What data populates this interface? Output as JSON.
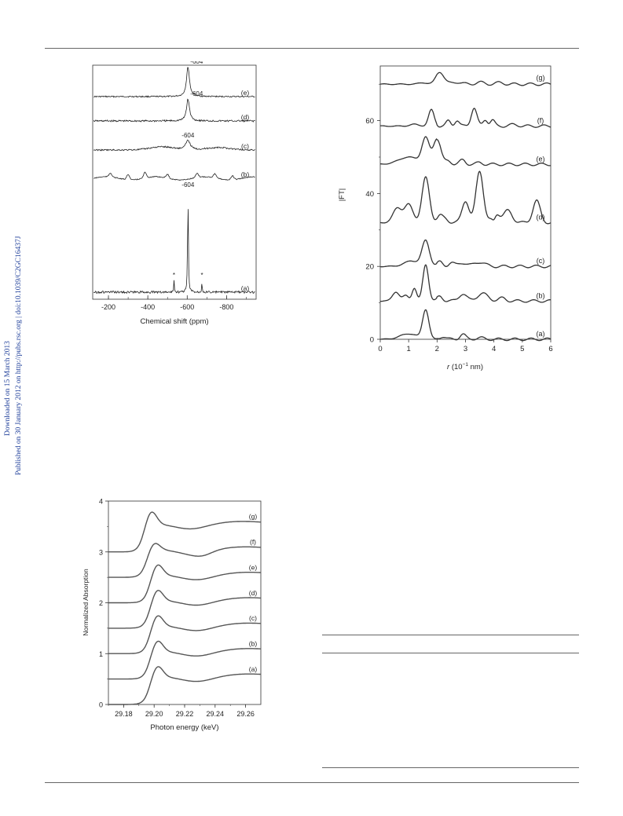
{
  "side_note": {
    "line1": "Downloaded on 15 March 2013",
    "line2": "Published on 30 January 2012 on http://pubs.rsc.org | doi:10.1039/C2GC16437J"
  },
  "figures": {
    "nmr": {
      "xlabel": "Chemical shift (ppm)",
      "xticks": [
        "-200",
        "-400",
        "-600",
        "-800"
      ],
      "traces": [
        {
          "label": "(e)",
          "peak_label": "-604"
        },
        {
          "label": "(d)",
          "peak_label": "-604"
        },
        {
          "label": "(c)",
          "peak_label": "-604"
        },
        {
          "label": "(b)",
          "peak_label": ""
        },
        {
          "label": "(a)",
          "peak_label": "-604"
        }
      ],
      "sideband_marker": "*"
    },
    "ft": {
      "ylabel": "|FT|",
      "xlabel_main": "r",
      "xlabel_unit": " (10",
      "xlabel_exp": "−1",
      "xlabel_tail": " nm)",
      "xticks": [
        "0",
        "1",
        "2",
        "3",
        "4",
        "5",
        "6"
      ],
      "yticks": [
        "0",
        "20",
        "40",
        "60"
      ],
      "traces": [
        "(g)",
        "(f)",
        "(e)",
        "(d)",
        "(c)",
        "(b)",
        "(a)"
      ]
    },
    "xanes": {
      "ylabel": "Normalized Absorption",
      "xlabel": "Photon energy (keV)",
      "xticks": [
        "29.18",
        "29.20",
        "29.22",
        "29.24",
        "29.26"
      ],
      "yticks": [
        "0",
        "1",
        "2",
        "3",
        "4"
      ],
      "traces": [
        "(g)",
        "(f)",
        "(e)",
        "(d)",
        "(c)",
        "(b)",
        "(a)"
      ]
    }
  },
  "chart_data": [
    {
      "type": "line",
      "xlabel": "Chemical shift (ppm)",
      "ylabel": "",
      "xlim": [
        -120,
        -950
      ],
      "x_reversed": true,
      "grid": false,
      "series": [
        {
          "name": "(e)",
          "peak_ppm": -604
        },
        {
          "name": "(d)",
          "peak_ppm": -604
        },
        {
          "name": "(c)",
          "peak_ppm": -604
        },
        {
          "name": "(b)",
          "peak_ppm": null
        },
        {
          "name": "(a)",
          "peak_ppm": -604,
          "sidebands_ppm": [
            -533,
            -675
          ]
        }
      ]
    },
    {
      "type": "line",
      "xlabel": "r (10−1 nm)",
      "ylabel": "|FT|",
      "xlim": [
        0,
        6
      ],
      "ylim": [
        0,
        75
      ],
      "grid": false,
      "series": [
        {
          "name": "(g)",
          "baseline": 70,
          "peaks": [
            {
              "x": 2.1,
              "y": 73.5
            }
          ]
        },
        {
          "name": "(f)",
          "baseline": 58.5,
          "peaks": [
            {
              "x": 1.8,
              "y": 63
            },
            {
              "x": 3.3,
              "y": 63.5
            }
          ]
        },
        {
          "name": "(e)",
          "baseline": 48,
          "peaks": [
            {
              "x": 1.6,
              "y": 55
            },
            {
              "x": 2.0,
              "y": 55
            }
          ]
        },
        {
          "name": "(d)",
          "baseline": 32,
          "peaks": [
            {
              "x": 1.6,
              "y": 44.5
            },
            {
              "x": 3.5,
              "y": 47
            },
            {
              "x": 5.5,
              "y": 38
            }
          ]
        },
        {
          "name": "(c)",
          "baseline": 20,
          "peaks": [
            {
              "x": 1.6,
              "y": 27
            }
          ]
        },
        {
          "name": "(b)",
          "baseline": 10.5,
          "peaks": [
            {
              "x": 1.6,
              "y": 20.5
            }
          ]
        },
        {
          "name": "(a)",
          "baseline": 0,
          "peaks": [
            {
              "x": 1.6,
              "y": 8
            }
          ]
        }
      ]
    },
    {
      "type": "line",
      "xlabel": "Photon energy (keV)",
      "ylabel": "Normalized Absorption",
      "xlim": [
        29.17,
        29.27
      ],
      "ylim": [
        0,
        4
      ],
      "grid": false,
      "series": [
        {
          "name": "(g)",
          "offset": 3.5,
          "edge_peak_keV": 29.198
        },
        {
          "name": "(f)",
          "offset": 3.0,
          "edge_peak_keV": 29.2
        },
        {
          "name": "(e)",
          "offset": 2.5,
          "edge_peak_keV": 29.202
        },
        {
          "name": "(d)",
          "offset": 2.0,
          "edge_peak_keV": 29.202
        },
        {
          "name": "(c)",
          "offset": 1.5,
          "edge_peak_keV": 29.202
        },
        {
          "name": "(b)",
          "offset": 1.0,
          "edge_peak_keV": 29.202
        },
        {
          "name": "(a)",
          "offset": 0.5,
          "edge_peak_keV": 29.202
        }
      ]
    }
  ]
}
